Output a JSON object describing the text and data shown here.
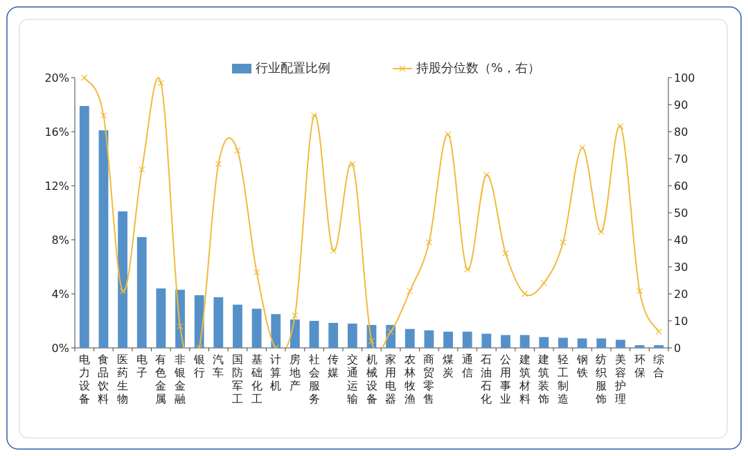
{
  "chart_data": {
    "type": "bar",
    "categories": [
      "电力设备",
      "食品饮料",
      "医药生物",
      "电子",
      "有色金属",
      "非银金融",
      "银行",
      "汽车",
      "国防军工",
      "基础化工",
      "计算机",
      "房地产",
      "社会服务",
      "传媒",
      "交通运输",
      "机械设备",
      "家用电器",
      "农林牧渔",
      "商贸零售",
      "煤炭",
      "通信",
      "石油石化",
      "公用事业",
      "建筑材料",
      "建筑装饰",
      "轻工制造",
      "钢铁",
      "纺织服饰",
      "美容护理",
      "环保",
      "综合"
    ],
    "series": [
      {
        "name": "行业配置比例",
        "color": "#5591c8",
        "values": [
          17.9,
          16.1,
          10.1,
          8.2,
          4.4,
          4.3,
          3.9,
          3.75,
          3.2,
          2.9,
          2.5,
          2.1,
          2.0,
          1.85,
          1.8,
          1.7,
          1.7,
          1.4,
          1.3,
          1.2,
          1.2,
          1.05,
          0.95,
          0.95,
          0.8,
          0.75,
          0.7,
          0.7,
          0.6,
          0.2,
          0.2
        ]
      },
      {
        "name": "持股分位数（%，右）",
        "type": "line",
        "axis": "y2",
        "color": "#f0bb3c",
        "values": [
          100,
          86,
          21,
          66,
          98,
          8,
          0,
          68,
          73,
          28,
          0,
          12,
          86,
          36,
          68,
          2.5,
          6,
          21,
          39,
          79,
          29,
          64,
          35,
          20,
          24,
          39,
          74,
          43,
          82,
          21,
          6
        ]
      }
    ],
    "ylim": [
      0,
      20
    ],
    "yticks": [
      {
        "value": 0,
        "label": "0%"
      },
      {
        "value": 4,
        "label": "4%"
      },
      {
        "value": 8,
        "label": "8%"
      },
      {
        "value": 12,
        "label": "12%"
      },
      {
        "value": 16,
        "label": "16%"
      },
      {
        "value": 20,
        "label": "20%"
      }
    ],
    "y2lim": [
      0,
      100
    ],
    "y2ticks": [
      0,
      10,
      20,
      30,
      40,
      50,
      60,
      70,
      80,
      90,
      100
    ],
    "legend": "top",
    "marker": "cross"
  }
}
